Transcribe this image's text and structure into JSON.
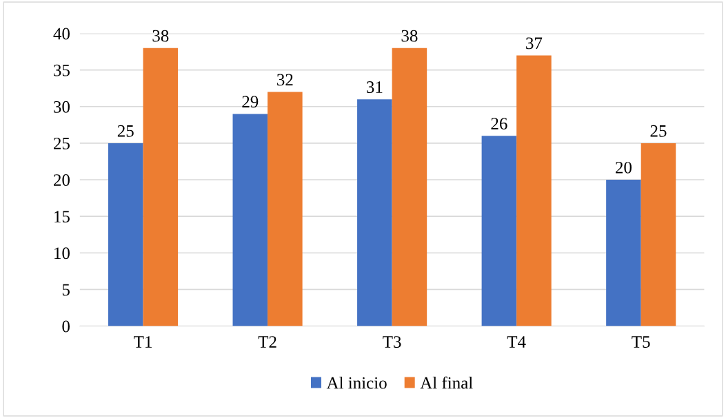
{
  "chart_data": {
    "type": "bar",
    "categories": [
      "T1",
      "T2",
      "T3",
      "T4",
      "T5"
    ],
    "series": [
      {
        "name": "Al inicio",
        "color": "#4472c4",
        "values": [
          25,
          29,
          31,
          26,
          20
        ]
      },
      {
        "name": "Al final",
        "color": "#ed7d31",
        "values": [
          38,
          32,
          38,
          37,
          25
        ]
      }
    ],
    "ylim": [
      0,
      40
    ],
    "yticks": [
      0,
      5,
      10,
      15,
      20,
      25,
      30,
      35,
      40
    ],
    "grid": "y",
    "legend": "bottom",
    "data_labels": true
  }
}
